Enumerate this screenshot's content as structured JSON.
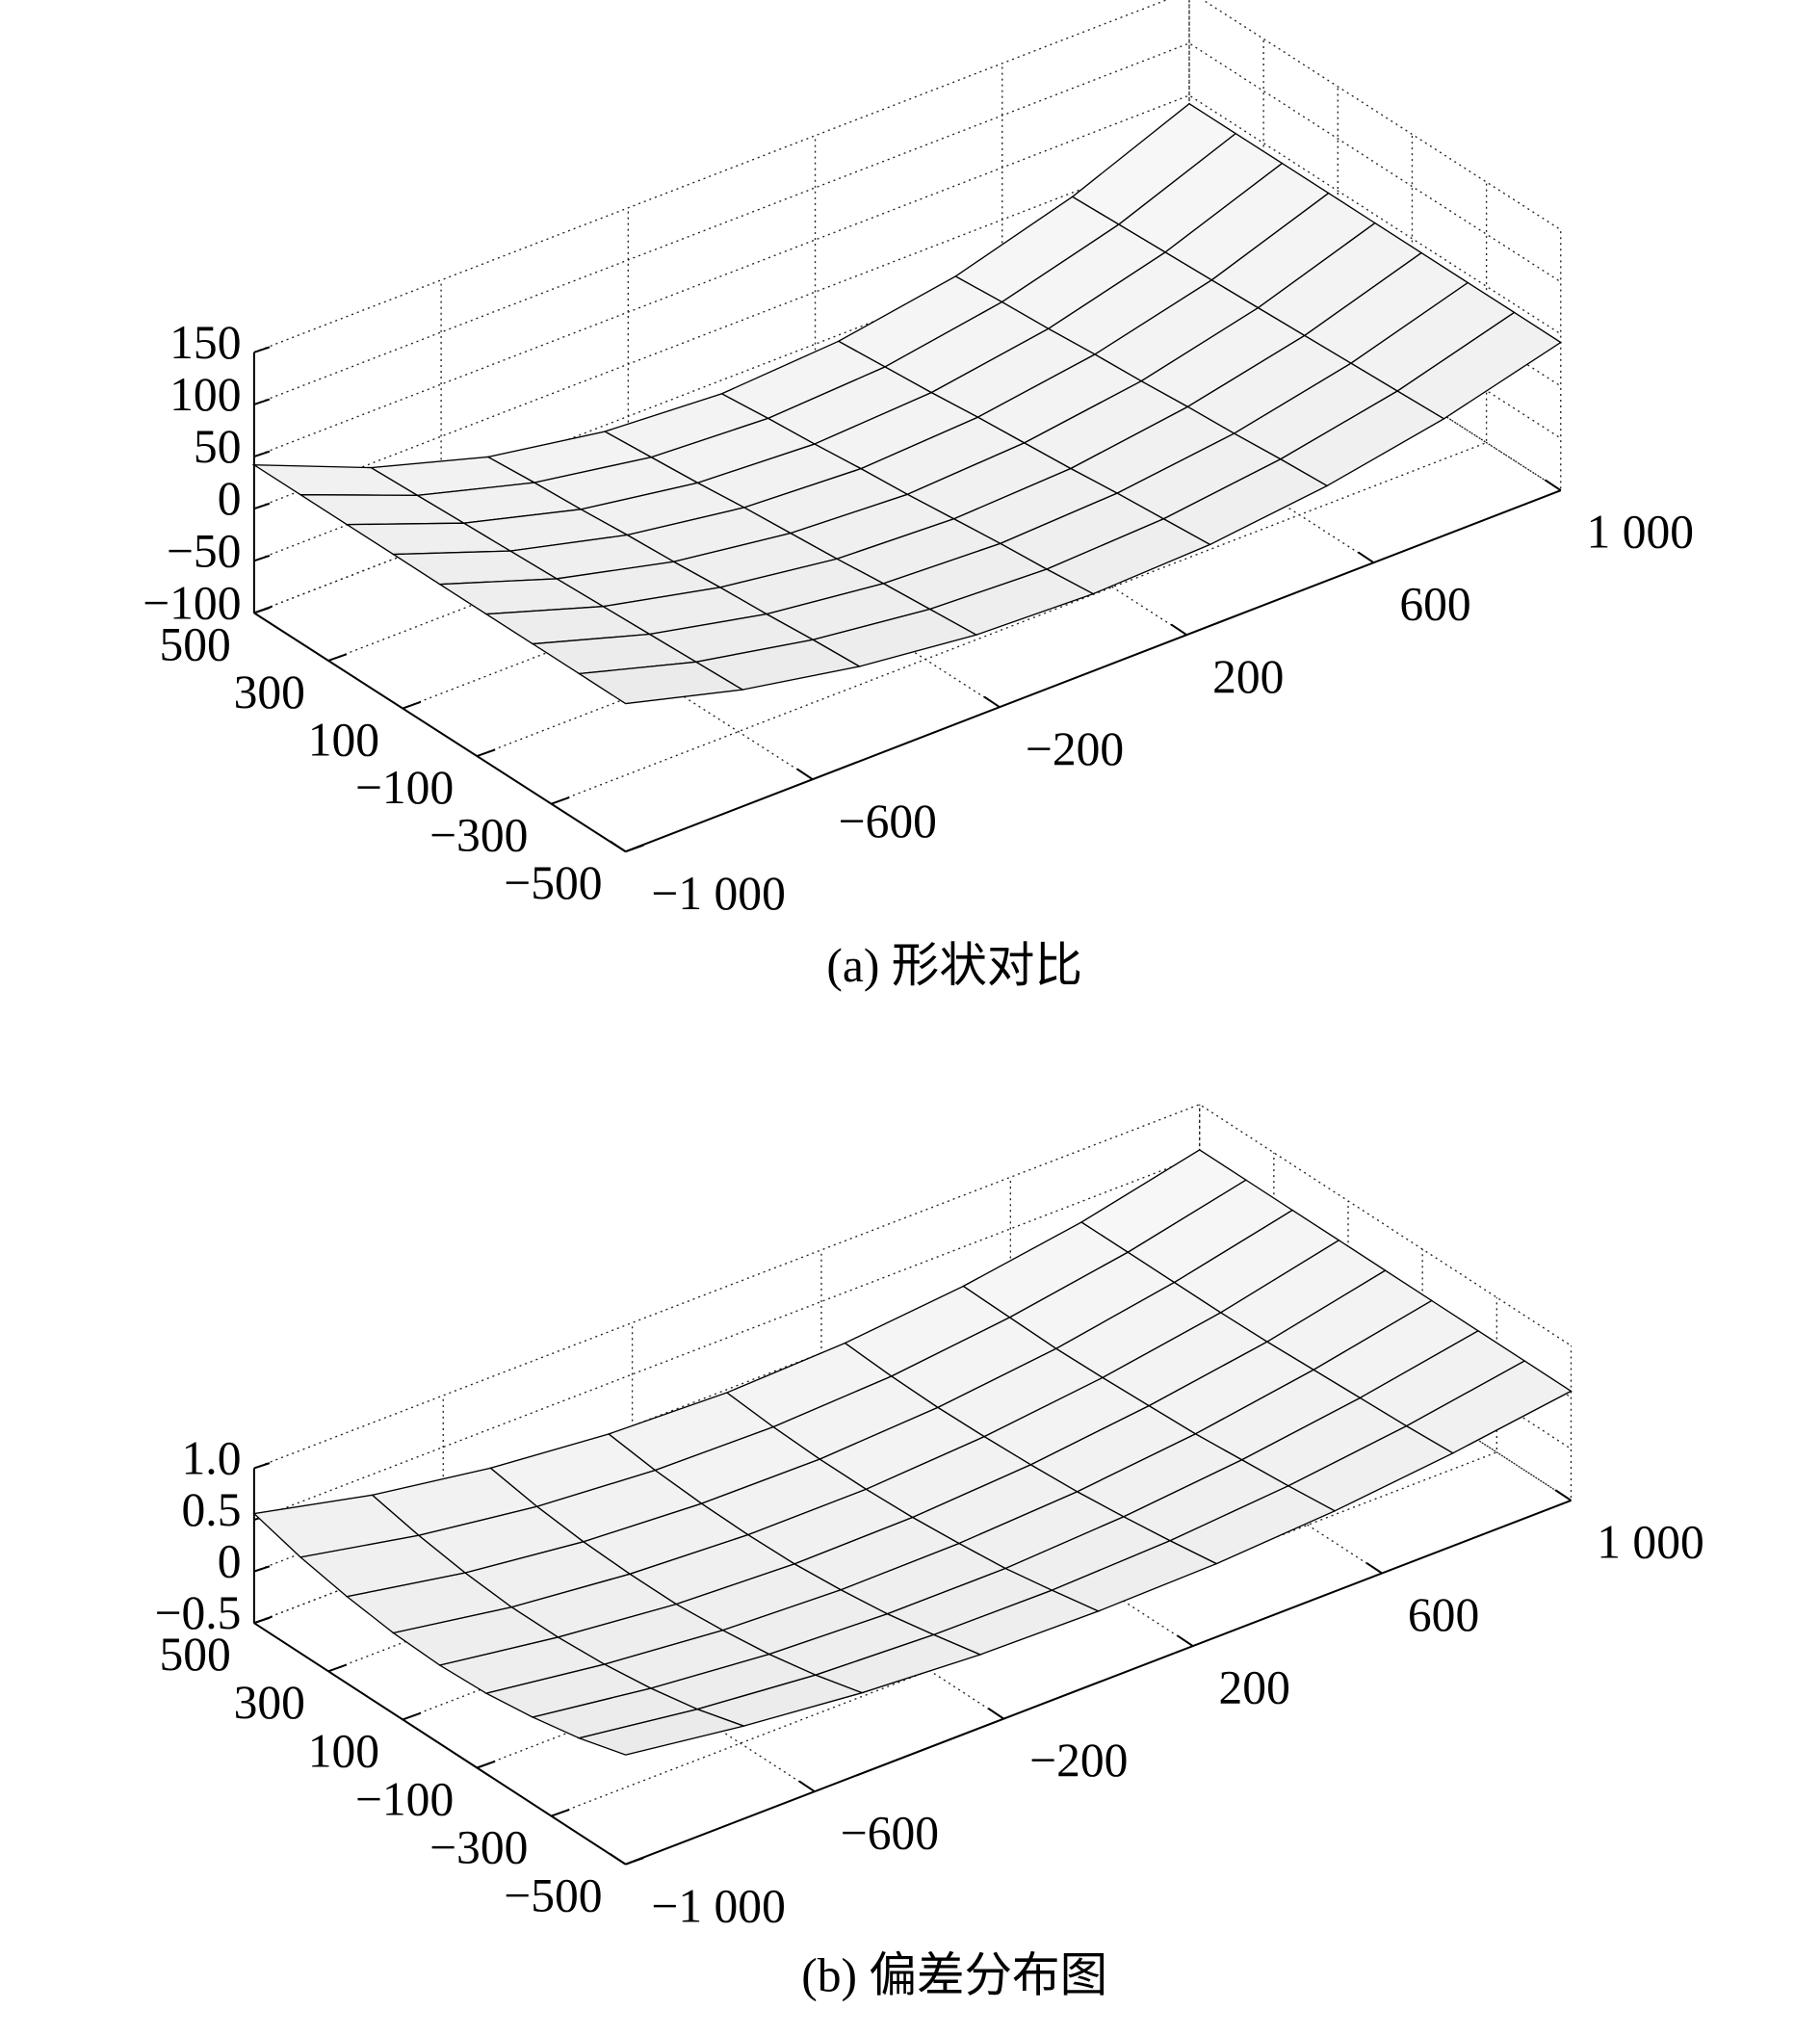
{
  "chart_data": [
    {
      "type": "surface",
      "caption": "(a) 形状对比",
      "color": "#000000",
      "grid": true,
      "x": [
        -1000,
        -750,
        -500,
        -250,
        0,
        250,
        500,
        750,
        1000
      ],
      "y": [
        -500,
        -375,
        -250,
        -125,
        0,
        125,
        250,
        375,
        500
      ],
      "z": [
        [
          42,
          12,
          -9,
          -22,
          -26,
          -22,
          -9,
          12,
          42
        ],
        [
          42,
          10,
          -12,
          -26,
          -31,
          -26,
          -12,
          10,
          42
        ],
        [
          42,
          8,
          -16,
          -30,
          -35,
          -30,
          -16,
          8,
          42
        ],
        [
          42,
          6,
          -19,
          -35,
          -40,
          -35,
          -19,
          6,
          42
        ],
        [
          42,
          4,
          -23,
          -39,
          -45,
          -39,
          -23,
          4,
          42
        ],
        [
          42,
          2,
          -26,
          -43,
          -49,
          -43,
          -26,
          2,
          42
        ],
        [
          42,
          0,
          -30,
          -48,
          -54,
          -48,
          -30,
          0,
          42
        ],
        [
          42,
          -2,
          -33,
          -52,
          -58,
          -52,
          -33,
          -2,
          42
        ],
        [
          42,
          -4,
          -37,
          -56,
          -63,
          -56,
          -37,
          -4,
          42
        ]
      ],
      "xlim": [
        -1000,
        1000
      ],
      "ylim": [
        -500,
        500
      ],
      "zlim": [
        -100,
        150
      ],
      "xticks": [
        {
          "value": -1000,
          "label": "−1 000"
        },
        {
          "value": -600,
          "label": "−600"
        },
        {
          "value": -200,
          "label": "−200"
        },
        200,
        600,
        {
          "value": 1000,
          "label": "1 000"
        }
      ],
      "yticks": [
        {
          "value": -500,
          "label": "−500"
        },
        {
          "value": -300,
          "label": "−300"
        },
        {
          "value": -100,
          "label": "−100"
        },
        100,
        300,
        500
      ],
      "zticks": [
        {
          "value": -100,
          "label": "−100"
        },
        {
          "value": -50,
          "label": "−50"
        },
        0,
        50,
        100,
        150
      ]
    },
    {
      "type": "surface",
      "caption": "(b) 偏差分布图",
      "color": "#000000",
      "grid": true,
      "x": [
        -1000,
        -750,
        -500,
        -250,
        0,
        250,
        500,
        750,
        1000
      ],
      "y": [
        -500,
        -375,
        -250,
        -125,
        0,
        125,
        250,
        375,
        500
      ],
      "z": [
        [
          0.56,
          0.4,
          0.28,
          0.21,
          0.19,
          0.21,
          0.28,
          0.4,
          0.56
        ],
        [
          0.43,
          0.27,
          0.16,
          0.11,
          0.1,
          0.14,
          0.23,
          0.37,
          0.56
        ],
        [
          0.34,
          0.18,
          0.07,
          0.02,
          0.02,
          0.08,
          0.19,
          0.35,
          0.56
        ],
        [
          0.28,
          0.12,
          0.01,
          -0.04,
          -0.03,
          0.03,
          0.15,
          0.33,
          0.56
        ],
        [
          0.26,
          0.09,
          -0.03,
          -0.08,
          -0.07,
          0,
          0.13,
          0.31,
          0.56
        ],
        [
          0.28,
          0.09,
          -0.03,
          -0.09,
          -0.09,
          -0.02,
          0.11,
          0.3,
          0.56
        ],
        [
          0.34,
          0.13,
          -0.01,
          -0.08,
          -0.09,
          -0.03,
          0.1,
          0.3,
          0.56
        ],
        [
          0.43,
          0.2,
          0.04,
          -0.05,
          -0.07,
          -0.02,
          0.11,
          0.3,
          0.56
        ],
        [
          0.56,
          0.3,
          0.12,
          0.01,
          -0.03,
          0.01,
          0.12,
          0.3,
          0.56
        ]
      ],
      "xlim": [
        -1000,
        1000
      ],
      "ylim": [
        -500,
        500
      ],
      "zlim": [
        -0.5,
        1
      ],
      "xticks": [
        {
          "value": -1000,
          "label": "−1 000"
        },
        {
          "value": -600,
          "label": "−600"
        },
        {
          "value": -200,
          "label": "−200"
        },
        200,
        600,
        {
          "value": 1000,
          "label": "1 000"
        }
      ],
      "yticks": [
        {
          "value": -500,
          "label": "−500"
        },
        {
          "value": -300,
          "label": "−300"
        },
        {
          "value": -100,
          "label": "−100"
        },
        100,
        300,
        500
      ],
      "zticks": [
        {
          "value": -0.5,
          "label": "−0.5"
        },
        0,
        0.5,
        {
          "value": 1,
          "label": "1.0"
        }
      ]
    }
  ]
}
